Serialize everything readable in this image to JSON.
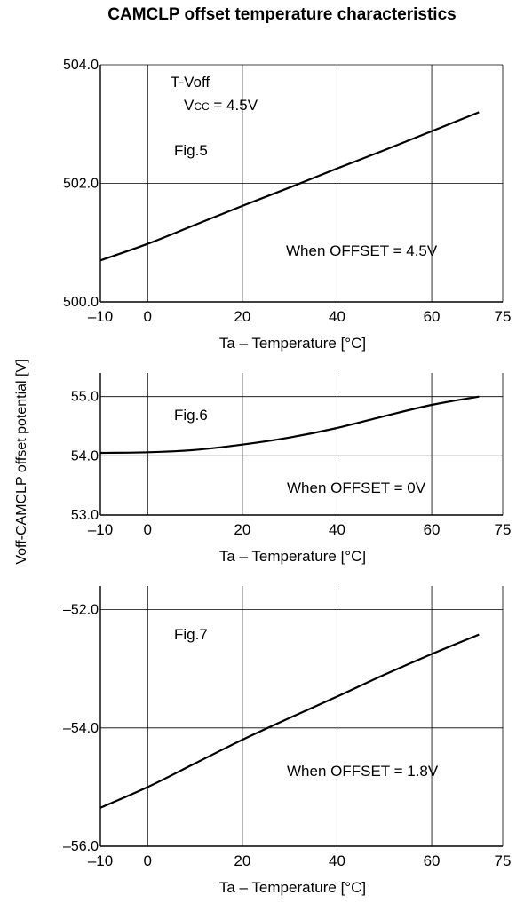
{
  "title": "CAMCLP offset temperature characteristics",
  "ylabel_shared": "Voff-CAMCLP offset potential [V]",
  "colors": {
    "line": "#000000",
    "grid": "#000000",
    "text": "#000000"
  },
  "chart_data": [
    {
      "type": "line",
      "title": "",
      "xlabel": "Ta – Temperature [°C]",
      "ylabel": "Voff-CAMCLP offset potential [V]",
      "xlim": [
        -10,
        75
      ],
      "ylim": [
        500.0,
        504.0
      ],
      "xticks": [
        -10,
        0,
        20,
        40,
        60,
        75
      ],
      "xtick_labels": [
        "–10",
        "0",
        "20",
        "40",
        "60",
        "75"
      ],
      "yticks": [
        500.0,
        502.0,
        504.0
      ],
      "ytick_labels": [
        "500.0",
        "502.0",
        "504.0"
      ],
      "grid": true,
      "annotations": [
        {
          "text": "T-Voff"
        },
        {
          "text": "Vcc = 4.5V",
          "main": "V",
          "small": "CC",
          "rest": " = 4.5V"
        },
        {
          "text": "Fig.5"
        },
        {
          "text": "When OFFSET = 4.5V"
        }
      ],
      "series": [
        {
          "x": [
            -10,
            0,
            10,
            20,
            30,
            40,
            50,
            60,
            70
          ],
          "values": [
            500.7,
            500.98,
            501.3,
            501.62,
            501.93,
            502.25,
            502.56,
            502.88,
            503.2
          ]
        }
      ]
    },
    {
      "type": "line",
      "title": "",
      "xlabel": "Ta – Temperature [°C]",
      "ylabel": "Voff-CAMCLP offset potential [V]",
      "xlim": [
        -10,
        75
      ],
      "ylim": [
        53.0,
        55.4
      ],
      "xticks": [
        -10,
        0,
        20,
        40,
        60,
        75
      ],
      "xtick_labels": [
        "–10",
        "0",
        "20",
        "40",
        "60",
        "75"
      ],
      "yticks": [
        53.0,
        54.0,
        55.0
      ],
      "ytick_labels": [
        "53.0",
        "54.0",
        "55.0"
      ],
      "grid": true,
      "annotations": [
        {
          "text": "Fig.6"
        },
        {
          "text": "When OFFSET = 0V"
        }
      ],
      "series": [
        {
          "x": [
            -10,
            0,
            10,
            20,
            30,
            40,
            50,
            60,
            70
          ],
          "values": [
            54.05,
            54.06,
            54.1,
            54.19,
            54.31,
            54.47,
            54.67,
            54.86,
            55.0
          ]
        }
      ]
    },
    {
      "type": "line",
      "title": "",
      "xlabel": "Ta – Temperature [°C]",
      "ylabel": "Voff-CAMCLP offset potential [V]",
      "xlim": [
        -10,
        75
      ],
      "ylim": [
        -56.0,
        -51.6
      ],
      "xticks": [
        -10,
        0,
        20,
        40,
        60,
        75
      ],
      "xtick_labels": [
        "–10",
        "0",
        "20",
        "40",
        "60",
        "75"
      ],
      "yticks": [
        -56.0,
        -54.0,
        -52.0
      ],
      "ytick_labels": [
        "–56.0",
        "–54.0",
        "–52.0"
      ],
      "grid": true,
      "annotations": [
        {
          "text": "Fig.7"
        },
        {
          "text": "When OFFSET = 1.8V"
        }
      ],
      "series": [
        {
          "x": [
            -10,
            0,
            10,
            20,
            30,
            40,
            50,
            60,
            70
          ],
          "values": [
            -55.35,
            -55.0,
            -54.6,
            -54.2,
            -53.83,
            -53.47,
            -53.1,
            -52.75,
            -52.42
          ]
        }
      ]
    }
  ]
}
